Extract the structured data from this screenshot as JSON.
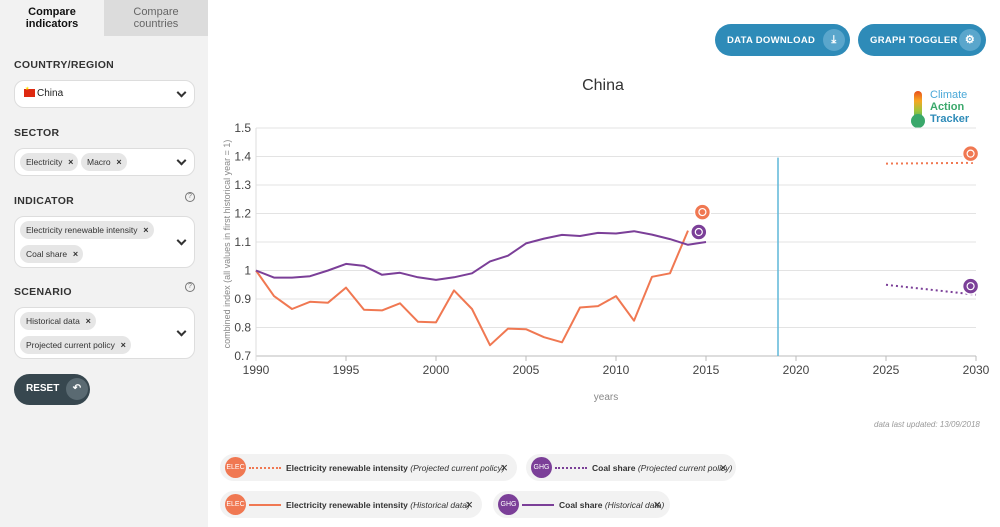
{
  "sidebar": {
    "tabs": [
      {
        "label": "Compare indicators"
      },
      {
        "label": "Compare countries"
      }
    ],
    "country_label": "COUNTRY/REGION",
    "country_value": "China",
    "sector_label": "SECTOR",
    "sector_pills": [
      "Electricity",
      "Macro"
    ],
    "indicator_label": "INDICATOR",
    "indicator_pills": [
      "Electricity renewable intensity",
      "Coal share"
    ],
    "scenario_label": "SCENARIO",
    "scenario_pills": [
      "Historical data",
      "Projected current policy"
    ],
    "help_symbol": "?",
    "pill_close": "×",
    "reset_label": "RESET",
    "reset_icon": "undo-icon"
  },
  "toolbar": {
    "download_label": "DATA DOWNLOAD",
    "download_icon": "download-icon",
    "toggler_label": "GRAPH TOGGLER",
    "toggler_icon": "gear-icon"
  },
  "logo": {
    "line1": "Climate",
    "line2": "Action",
    "line3": "Tracker"
  },
  "updated_text": "data last updated: 13/09/2018",
  "legend": [
    {
      "name": "Electricity renewable intensity",
      "scenario": "(Projected current policy)",
      "color": "#f07852",
      "style": "dotted",
      "icon_text": "ELEC"
    },
    {
      "name": "Coal share",
      "scenario": "(Projected current policy)",
      "color": "#7b3f98",
      "style": "dotted",
      "icon_text": "GHG"
    },
    {
      "name": "Electricity renewable intensity",
      "scenario": "(Historical data)",
      "color": "#f07852",
      "style": "solid",
      "icon_text": "ELEC"
    },
    {
      "name": "Coal share",
      "scenario": "(Historical data)",
      "color": "#7b3f98",
      "style": "solid",
      "icon_text": "GHG"
    }
  ],
  "legend_close": "×",
  "chart_data": {
    "type": "line",
    "title": "China",
    "xlabel": "years",
    "ylabel": "combined index (all values in first historical year = 1)",
    "xlim": [
      1990,
      2030
    ],
    "ylim": [
      0.7,
      1.5
    ],
    "xticks": [
      1990,
      1995,
      2000,
      2005,
      2010,
      2015,
      2020,
      2025,
      2030
    ],
    "yticks": [
      0.7,
      0.8,
      0.9,
      1,
      1.1,
      1.2,
      1.3,
      1.4,
      1.5
    ],
    "ytick_labels": [
      "0.7",
      "0.8",
      "0.9",
      "1",
      "1.1",
      "1.2",
      "1.3",
      "1.4",
      "1.5"
    ],
    "grid": true,
    "vline": {
      "x": 2019,
      "color": "#5fb7d9"
    },
    "series": [
      {
        "name": "Electricity renewable intensity",
        "scenario": "Historical data",
        "color": "#f07852",
        "style": "solid",
        "x": [
          1990,
          1991,
          1992,
          1993,
          1994,
          1995,
          1996,
          1997,
          1998,
          1999,
          2000,
          2001,
          2002,
          2003,
          2004,
          2005,
          2006,
          2007,
          2008,
          2009,
          2010,
          2011,
          2012,
          2013,
          2014
        ],
        "y": [
          1.0,
          0.91,
          0.865,
          0.89,
          0.887,
          0.94,
          0.862,
          0.86,
          0.885,
          0.82,
          0.818,
          0.93,
          0.865,
          0.738,
          0.796,
          0.794,
          0.766,
          0.748,
          0.87,
          0.875,
          0.91,
          0.824,
          0.978,
          0.99,
          1.14
        ]
      },
      {
        "name": "Coal share",
        "scenario": "Historical data",
        "color": "#7b3f98",
        "style": "solid",
        "x": [
          1990,
          1991,
          1992,
          1993,
          1994,
          1995,
          1996,
          1997,
          1998,
          1999,
          2000,
          2001,
          2002,
          2003,
          2004,
          2005,
          2006,
          2007,
          2008,
          2009,
          2010,
          2011,
          2012,
          2013,
          2014,
          2015
        ],
        "y": [
          1.0,
          0.975,
          0.975,
          0.98,
          1.0,
          1.023,
          1.016,
          0.985,
          0.992,
          0.976,
          0.967,
          0.976,
          0.99,
          1.032,
          1.052,
          1.095,
          1.112,
          1.125,
          1.121,
          1.132,
          1.13,
          1.138,
          1.126,
          1.11,
          1.09,
          1.1
        ]
      },
      {
        "name": "Electricity renewable intensity",
        "scenario": "Projected current policy",
        "color": "#f07852",
        "style": "dotted",
        "x": [
          2025,
          2030
        ],
        "y": [
          1.375,
          1.378
        ]
      },
      {
        "name": "Coal share",
        "scenario": "Projected current policy",
        "color": "#7b3f98",
        "style": "dotted",
        "x": [
          2025,
          2030
        ],
        "y": [
          0.95,
          0.915
        ]
      }
    ],
    "markers": [
      {
        "series": "Electricity renewable intensity",
        "x": 2014.8,
        "y": 1.205,
        "color": "#f07852"
      },
      {
        "series": "Coal share",
        "x": 2014.6,
        "y": 1.135,
        "color": "#7b3f98"
      },
      {
        "series": "Electricity renewable intensity",
        "x": 2029.7,
        "y": 1.41,
        "color": "#f07852"
      },
      {
        "series": "Coal share",
        "x": 2029.7,
        "y": 0.945,
        "color": "#7b3f98"
      }
    ]
  }
}
